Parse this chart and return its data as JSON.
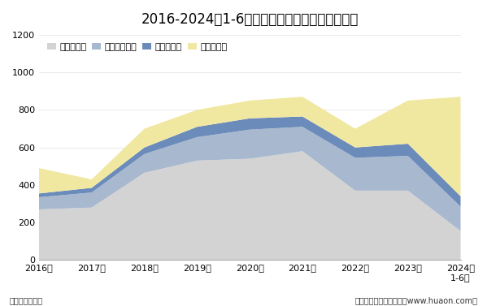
{
  "title": "2016-2024年1-6月青海省各发电类型发电量统计",
  "years": [
    "2016年",
    "2017年",
    "2018年",
    "2019年",
    "2020年",
    "2021年",
    "2022年",
    "2023年",
    "2024年\n1-6月"
  ],
  "hydro": [
    270,
    280,
    465,
    530,
    540,
    580,
    370,
    370,
    155
  ],
  "solar": [
    65,
    80,
    100,
    125,
    155,
    130,
    175,
    185,
    130
  ],
  "wind": [
    20,
    25,
    35,
    55,
    60,
    55,
    55,
    65,
    55
  ],
  "thermal": [
    135,
    45,
    100,
    90,
    95,
    105,
    100,
    230,
    530
  ],
  "hydro_color": "#d3d3d3",
  "solar_color": "#a8b8ce",
  "wind_color": "#6b8cba",
  "thermal_color": "#f0e8a0",
  "ylim": [
    0,
    1200
  ],
  "yticks": [
    0,
    200,
    400,
    600,
    800,
    1000,
    1200
  ],
  "ylabel_unit": "单位：亿千瓦时",
  "footer": "制图：华经产业研究院（www.huaon.com）",
  "legend_labels": [
    "水力发电量",
    "太阳能发电量",
    "风力发电量",
    "火力发电量"
  ],
  "bg_color": "#ffffff"
}
